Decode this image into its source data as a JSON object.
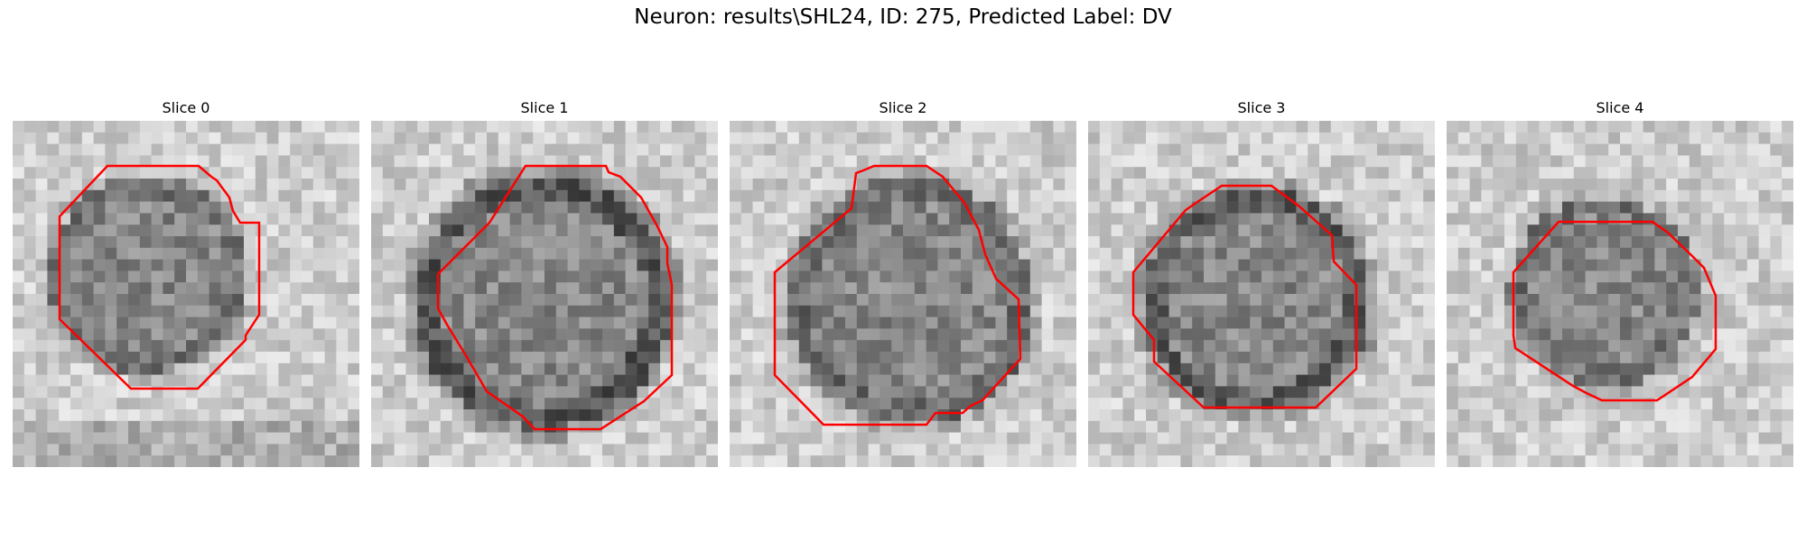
{
  "figure": {
    "title": "Neuron: results\\SHL24, ID: 275, Predicted Label: DV"
  },
  "slices": [
    {
      "title": "Slice 0"
    },
    {
      "title": "Slice 1"
    },
    {
      "title": "Slice 2"
    },
    {
      "title": "Slice 3"
    },
    {
      "title": "Slice 4"
    }
  ],
  "colors": {
    "contour": "#ff0000",
    "background": "#ffffff"
  }
}
